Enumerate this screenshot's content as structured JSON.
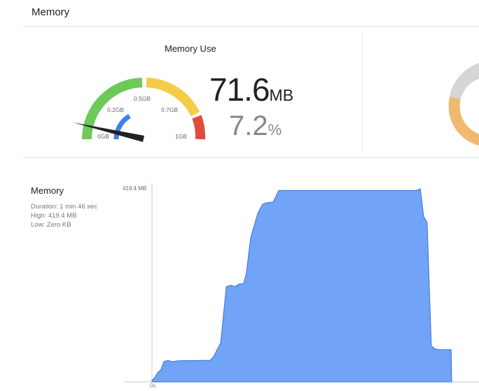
{
  "header": {
    "title": "Memory"
  },
  "gauge": {
    "title": "Memory Use",
    "value": "71.6",
    "unit": "MB",
    "percent": "7.2",
    "percent_unit": "%",
    "fraction": 0.072,
    "labels": [
      "0GB",
      "0.2GB",
      "0.5GB",
      "0.7GB",
      "1GB"
    ],
    "colors": {
      "green": "#6cc95a",
      "yellow": "#f4cc47",
      "red": "#e24b3b",
      "usage": "#3f7ef5",
      "needle": "#222222"
    }
  },
  "side_donut": {
    "colors": {
      "used": "#d6d6d6",
      "other": "#efb971"
    }
  },
  "chart_section": {
    "title": "Memory",
    "duration": "Duration: 1 min 46 sec",
    "high": "High: 419.4 MB",
    "low": "Low: Zero KB"
  },
  "chart_data": {
    "type": "area",
    "y_max_label": "419.4 MB",
    "x_start_label": "0s",
    "ylim": [
      0,
      419.4
    ],
    "xlim": [
      0,
      106
    ],
    "color": "#71a3f7",
    "x_unit": "s",
    "y_unit": "MB",
    "points": [
      [
        0,
        4
      ],
      [
        0.7,
        7
      ],
      [
        2.0,
        20
      ],
      [
        3.2,
        27
      ],
      [
        4.2,
        44
      ],
      [
        5.7,
        47
      ],
      [
        6.9,
        44
      ],
      [
        9.4,
        46
      ],
      [
        20.6,
        47
      ],
      [
        21.8,
        55
      ],
      [
        24.3,
        85
      ],
      [
        26.3,
        207
      ],
      [
        28.0,
        210
      ],
      [
        29.2,
        207
      ],
      [
        31.0,
        213
      ],
      [
        32.4,
        213
      ],
      [
        33.4,
        237
      ],
      [
        34.9,
        313
      ],
      [
        37.4,
        366
      ],
      [
        39.1,
        386
      ],
      [
        40.4,
        389
      ],
      [
        42.9,
        391
      ],
      [
        44.8,
        416
      ],
      [
        93.6,
        416
      ],
      [
        94.9,
        419.4
      ],
      [
        96.1,
        359
      ],
      [
        97.3,
        347
      ],
      [
        98.8,
        78
      ],
      [
        100.3,
        71
      ],
      [
        101.8,
        70
      ],
      [
        105.8,
        70
      ],
      [
        106,
        0
      ]
    ]
  }
}
